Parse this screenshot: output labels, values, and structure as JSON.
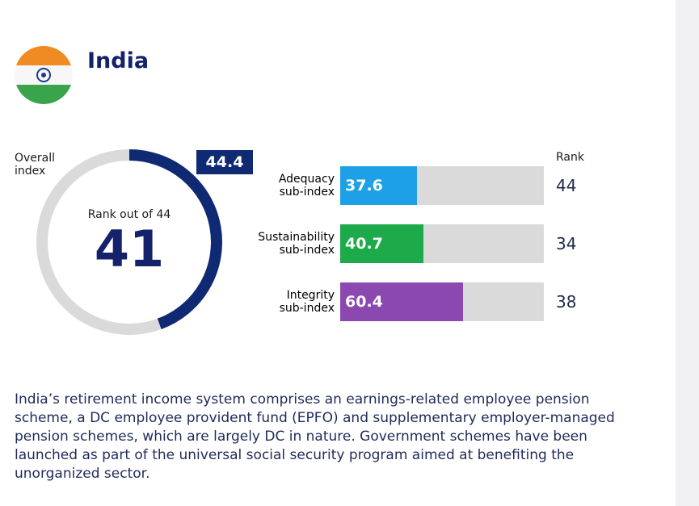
{
  "country": "India",
  "overall": {
    "label": "Overall index",
    "value": "44.4",
    "rank_caption": "Rank out of 44",
    "rank": "41"
  },
  "rank_header": "Rank",
  "description": "India’s retirement income system comprises an earnings-related employee pension scheme, a DC employee provident fund (EPFO) and supplementary employer-managed pension schemes, which are largely DC in nature. Government schemes have been launched as part of the universal social security program aimed at benefiting the unorganized sector.",
  "colors": {
    "navy": "#0f2a73",
    "adequacy": "#1ea0e6",
    "sustainability": "#1daa4a",
    "integrity": "#8a48b0",
    "track": "#dadada"
  },
  "chart_data": [
    {
      "type": "pie",
      "label": "Overall index",
      "value": 44.4,
      "max": 100,
      "rank": 41,
      "rank_of": 44
    },
    {
      "type": "bar",
      "orientation": "horizontal",
      "xlim": [
        0,
        100
      ],
      "categories": [
        "Adequacy sub-index",
        "Sustainability sub-index",
        "Integrity sub-index"
      ],
      "values": [
        37.6,
        40.7,
        60.4
      ],
      "ranks": [
        44,
        34,
        38
      ]
    }
  ],
  "subindices": [
    {
      "label1": "Adequacy",
      "label2": "sub-index",
      "value": "37.6",
      "rank": "44",
      "color": "#1ea0e6"
    },
    {
      "label1": "Sustainability",
      "label2": "sub-index",
      "value": "40.7",
      "rank": "34",
      "color": "#1daa4a"
    },
    {
      "label1": "Integrity",
      "label2": "sub-index",
      "value": "60.4",
      "rank": "38",
      "color": "#8a48b0"
    }
  ]
}
